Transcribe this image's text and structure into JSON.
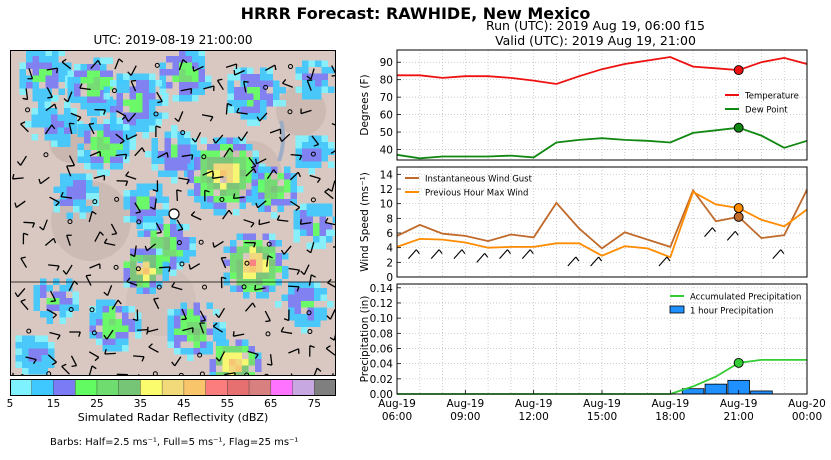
{
  "title": "HRRR Forecast: RAWHIDE, New Mexico",
  "map": {
    "title": "UTC: 2019-08-19 21:00:00",
    "colorbar_label": "Simulated Radar Reflectivity (dBZ)",
    "colorbar_ticks": [
      "5",
      "15",
      "25",
      "35",
      "45",
      "55",
      "65",
      "75"
    ],
    "colorbar_colors": [
      "#7ff2ff",
      "#3fc8ff",
      "#7b7bf5",
      "#62fc62",
      "#6fdc6f",
      "#76c476",
      "#fbfb6e",
      "#f2d97a",
      "#f8c56b",
      "#fb7d7d",
      "#e67070",
      "#d88080",
      "#ff73ff",
      "#c7a8e0",
      "#7f7f7f"
    ],
    "barbs_note": "Barbs: Half=2.5 ms⁻¹, Full=5 ms⁻¹, Flag=25 ms⁻¹"
  },
  "run_line": "Run (UTC): 2019 Aug 19, 06:00 f15",
  "valid_line": "Valid (UTC): 2019 Aug 19, 21:00",
  "chart_data": [
    {
      "type": "line",
      "ylabel": "Degrees (F)",
      "ylim": [
        34,
        97
      ],
      "yticks": [
        40,
        50,
        60,
        70,
        80,
        90
      ],
      "grid": true,
      "legend_position": "right",
      "x": [
        0,
        1,
        2,
        3,
        4,
        5,
        6,
        7,
        8,
        9,
        10,
        11,
        12,
        13,
        14,
        15,
        16,
        17,
        18
      ],
      "series": [
        {
          "name": "Temperature",
          "color": "#ee1111",
          "values": [
            82.5,
            82.5,
            81,
            82,
            82,
            81,
            79.5,
            77.5,
            82,
            86,
            89,
            91,
            93,
            87.5,
            86.5,
            85.5,
            90,
            92.5,
            89
          ]
        },
        {
          "name": "Dew Point",
          "color": "#118811",
          "values": [
            37,
            35,
            36,
            36,
            36,
            36.5,
            35.5,
            44,
            45.5,
            46.5,
            45.5,
            45,
            44,
            49.5,
            51,
            52.5,
            48,
            41,
            45
          ]
        }
      ],
      "marker": {
        "x": 15,
        "series": [
          "Temperature",
          "Dew Point"
        ]
      }
    },
    {
      "type": "line",
      "ylabel": "Wind Speed  (ms⁻¹)",
      "ylim": [
        0,
        15
      ],
      "yticks": [
        0,
        2,
        4,
        6,
        8,
        10,
        12,
        14
      ],
      "grid": true,
      "legend_position": "top-left",
      "x": [
        0,
        1,
        2,
        3,
        4,
        5,
        6,
        7,
        8,
        9,
        10,
        11,
        12,
        13,
        14,
        15,
        16,
        17,
        18
      ],
      "series": [
        {
          "name": "Instantaneous Wind Gust",
          "color": "#c06a2b",
          "values": [
            5.6,
            7.1,
            5.9,
            5.6,
            4.9,
            5.8,
            5.4,
            10.1,
            6.6,
            3.9,
            6.1,
            5.1,
            4.1,
            11.8,
            7.6,
            8.2,
            5.3,
            5.7,
            11.9
          ]
        },
        {
          "name": "Previous Hour Max Wind",
          "color": "#ff8c00",
          "values": [
            4.1,
            5.2,
            5.1,
            4.7,
            4.0,
            4.1,
            4.1,
            4.6,
            4.6,
            2.9,
            4.2,
            3.9,
            2.7,
            11.6,
            9.9,
            9.4,
            7.8,
            6.9,
            9.2
          ]
        }
      ],
      "marker": {
        "x": 15,
        "series": [
          "Instantaneous Wind Gust",
          "Previous Hour Max Wind"
        ]
      }
    },
    {
      "type": "bar",
      "ylabel": "Precipitation (in)",
      "xlabel": "",
      "ylim": [
        0,
        0.145
      ],
      "yticks": [
        0.0,
        0.02,
        0.04,
        0.06,
        0.08,
        0.1,
        0.12,
        0.14
      ],
      "ytick_labels": [
        "0.00",
        "0.02",
        "0.04",
        "0.06",
        "0.08",
        "0.10",
        "0.12",
        "0.14"
      ],
      "grid": true,
      "legend_position": "top-right",
      "x": [
        0,
        1,
        2,
        3,
        4,
        5,
        6,
        7,
        8,
        9,
        10,
        11,
        12,
        13,
        14,
        15,
        16,
        17,
        18
      ],
      "xtick_positions": [
        0,
        3,
        6,
        9,
        12,
        15,
        18
      ],
      "xtick_labels": [
        [
          "Aug-19",
          "06:00"
        ],
        [
          "Aug-19",
          "09:00"
        ],
        [
          "Aug-19",
          "12:00"
        ],
        [
          "Aug-19",
          "15:00"
        ],
        [
          "Aug-19",
          "18:00"
        ],
        [
          "Aug-19",
          "21:00"
        ],
        [
          "Aug-20",
          "00:00"
        ]
      ],
      "series": [
        {
          "name": "Accumulated Precipitation",
          "kind": "line",
          "color": "#33cc33",
          "values": [
            0,
            0,
            0,
            0,
            0,
            0,
            0,
            0,
            0,
            0,
            0,
            0,
            0,
            0.01,
            0.023,
            0.041,
            0.045,
            0.045,
            0.045
          ]
        },
        {
          "name": "1 hour Precipitation",
          "kind": "bar",
          "color": "#1e90ff",
          "values": [
            0,
            0,
            0,
            0,
            0,
            0,
            0,
            0,
            0,
            0,
            0,
            0,
            0,
            0.007,
            0.013,
            0.018,
            0.004,
            0,
            0
          ]
        }
      ],
      "marker": {
        "x": 15,
        "series": [
          "Accumulated Precipitation"
        ]
      }
    }
  ]
}
